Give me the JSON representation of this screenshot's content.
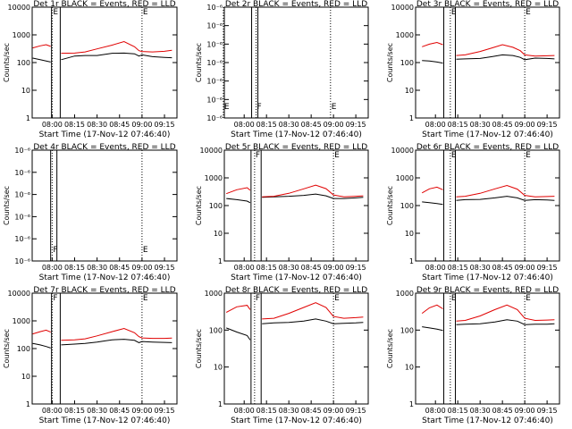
{
  "chart_data": {
    "type": "line",
    "x_ticks": [
      "08:00",
      "08:15",
      "08:30",
      "08:45",
      "09:00",
      "09:15"
    ],
    "x_range": [
      "07:46:40",
      "09:23:20"
    ],
    "x_label": "Start Time (17-Nov-12 07:46:40)",
    "y_label": "Counts/sec",
    "colors": {
      "events": "#000000",
      "lld": "#e00000"
    },
    "panels": [
      {
        "title": "Det 1r BLACK = Events, RED = LLD",
        "y_scale": "log",
        "y_range": [
          1,
          12000
        ],
        "y_tick_labels": [
          "1",
          "10",
          "100",
          "1000",
          "10000"
        ],
        "markers": [
          {
            "t": "08:00",
            "label": "E"
          },
          {
            "t": "09:00",
            "label": "E"
          }
        ],
        "x_label": "Start Time (17-Nov-12 07:46:40)",
        "series": [
          {
            "t": [
              "07:47",
              "07:52",
              "07:56",
              "07:59"
            ],
            "events": [
              160,
              140,
              125,
              115
            ],
            "lld": [
              380,
              450,
              500,
              430
            ]
          },
          {
            "t": [
              "08:06",
              "08:15",
              "08:22",
              "08:30",
              "08:40",
              "08:48",
              "08:55",
              "08:58",
              "09:00",
              "09:07",
              "09:15",
              "09:20"
            ],
            "events": [
              140,
              190,
              200,
              200,
              240,
              245,
              230,
              190,
              210,
              180,
              170,
              165
            ],
            "lld": [
              240,
              245,
              270,
              350,
              480,
              650,
              420,
              300,
              280,
              270,
              285,
              310
            ]
          }
        ]
      },
      {
        "title": "Det 2r BLACK = Events, RED = LLD",
        "y_scale": "log",
        "y_range": [
          1e-06,
          8e-06
        ],
        "y_tick_labels": [
          "10⁻⁶",
          "10⁻⁶",
          "10⁻⁶",
          "10⁻⁶",
          "10⁻⁶",
          "10⁻⁶",
          "10⁻⁶"
        ],
        "markers": [
          {
            "t": "07:46",
            "label": "E"
          },
          {
            "t": "08:08",
            "label": "F"
          },
          {
            "t": "08:58",
            "label": "E"
          }
        ],
        "x_label": "Start Time (17-Nov-12 07:46:40)",
        "series": []
      },
      {
        "title": "Det 3r BLACK = Events, RED = LLD",
        "y_scale": "log",
        "y_range": [
          1,
          12000
        ],
        "y_tick_labels": [
          "1",
          "10",
          "100",
          "1000",
          "10000"
        ],
        "markers": [
          {
            "t": "08:10",
            "label": "E"
          },
          {
            "t": "09:00",
            "label": "E"
          }
        ],
        "x_label": "Start Time (17-Nov-12 07:46:40)",
        "series": [
          {
            "t": [
              "07:51",
              "07:56",
              "08:01",
              "08:05"
            ],
            "events": [
              130,
              125,
              115,
              105
            ],
            "lld": [
              420,
              520,
              600,
              500
            ]
          },
          {
            "t": [
              "08:14",
              "08:20",
              "08:30",
              "08:38",
              "08:45",
              "08:52",
              "08:57",
              "09:00",
              "09:07",
              "09:15",
              "09:20"
            ],
            "events": [
              145,
              150,
              155,
              180,
              210,
              200,
              170,
              140,
              160,
              155,
              150
            ],
            "lld": [
              200,
              210,
              280,
              380,
              500,
              400,
              300,
              210,
              190,
              195,
              200
            ]
          }
        ]
      },
      {
        "title": "Det 4r BLACK = Events, RED = LLD",
        "y_scale": "log",
        "y_range": [
          1e-06,
          1.2e-05
        ],
        "y_tick_labels": [
          "10⁻⁶",
          "10⁻⁶",
          "10⁻⁶",
          "10⁻⁶",
          "10⁻⁶",
          "10⁻⁶"
        ],
        "markers": [
          {
            "t": "08:00",
            "label": "F"
          },
          {
            "t": "09:00",
            "label": "E"
          }
        ],
        "x_label": "Start Time (17-Nov-12 07:46:40)",
        "series": []
      },
      {
        "title": "Det 5r BLACK = Events, RED = LLD",
        "y_scale": "log",
        "y_range": [
          1,
          12000
        ],
        "y_tick_labels": [
          "1",
          "10",
          "100",
          "1000",
          "10000"
        ],
        "markers": [
          {
            "t": "08:07",
            "label": "F"
          },
          {
            "t": "09:00",
            "label": "E"
          }
        ],
        "x_label": "Start Time (17-Nov-12 07:46:40)",
        "series": [
          {
            "t": [
              "07:48",
              "07:55",
              "08:02",
              "08:04"
            ],
            "events": [
              200,
              180,
              160,
              140
            ],
            "lld": [
              300,
              420,
              500,
              400
            ]
          },
          {
            "t": [
              "08:12",
              "08:20",
              "08:30",
              "08:40",
              "08:48",
              "08:55",
              "09:00",
              "09:07",
              "09:15",
              "09:20"
            ],
            "events": [
              220,
              230,
              240,
              260,
              290,
              250,
              200,
              200,
              210,
              220
            ],
            "lld": [
              230,
              240,
              310,
              450,
              620,
              460,
              270,
              230,
              240,
              250
            ]
          }
        ]
      },
      {
        "title": "Det 6r BLACK = Events, RED = LLD",
        "y_scale": "log",
        "y_range": [
          1,
          12000
        ],
        "y_tick_labels": [
          "1",
          "10",
          "100",
          "1000",
          "10000"
        ],
        "markers": [
          {
            "t": "08:10",
            "label": "E"
          },
          {
            "t": "09:00",
            "label": "E"
          }
        ],
        "x_label": "Start Time (17-Nov-12 07:46:40)",
        "series": [
          {
            "t": [
              "07:51",
              "07:56",
              "08:01",
              "08:05"
            ],
            "events": [
              150,
              140,
              130,
              120
            ],
            "lld": [
              320,
              450,
              520,
              420
            ]
          },
          {
            "t": [
              "08:14",
              "08:20",
              "08:30",
              "08:40",
              "08:48",
              "08:55",
              "09:00",
              "09:07",
              "09:15",
              "09:20"
            ],
            "events": [
              170,
              180,
              185,
              210,
              240,
              210,
              170,
              180,
              175,
              170
            ],
            "lld": [
              230,
              240,
              310,
              450,
              600,
              440,
              260,
              230,
              235,
              240
            ]
          }
        ]
      },
      {
        "title": "Det 7r BLACK = Events, RED = LLD",
        "y_scale": "log",
        "y_range": [
          1,
          12000
        ],
        "y_tick_labels": [
          "1",
          "10",
          "100",
          "1000",
          "10000"
        ],
        "markers": [
          {
            "t": "08:00",
            "label": "F"
          },
          {
            "t": "09:00",
            "label": "E"
          }
        ],
        "x_label": "Start Time (17-Nov-12 07:46:40)",
        "series": [
          {
            "t": [
              "07:47",
              "07:52",
              "07:56",
              "07:59"
            ],
            "events": [
              170,
              150,
              130,
              115
            ],
            "lld": [
              380,
              460,
              520,
              440
            ]
          },
          {
            "t": [
              "08:06",
              "08:15",
              "08:22",
              "08:30",
              "08:40",
              "08:48",
              "08:55",
              "08:58",
              "09:00",
              "09:07",
              "09:15",
              "09:20"
            ],
            "events": [
              150,
              160,
              170,
              190,
              230,
              240,
              220,
              180,
              200,
              190,
              185,
              180
            ],
            "lld": [
              220,
              230,
              250,
              320,
              460,
              600,
              420,
              300,
              270,
              260,
              260,
              265
            ]
          }
        ]
      },
      {
        "title": "Det 8r BLACK = Events, RED = LLD",
        "y_scale": "log",
        "y_range": [
          1,
          1200
        ],
        "y_tick_labels": [
          "1",
          "10",
          "100",
          "1000"
        ],
        "markers": [
          {
            "t": "08:07",
            "label": "F"
          },
          {
            "t": "09:00",
            "label": "E"
          }
        ],
        "x_label": "Start Time (17-Nov-12 07:46:40)",
        "series": [
          {
            "t": [
              "07:48",
              "07:55",
              "08:02",
              "08:04"
            ],
            "events": [
              130,
              100,
              80,
              60
            ],
            "lld": [
              350,
              500,
              550,
              420
            ]
          },
          {
            "t": [
              "08:12",
              "08:20",
              "08:30",
              "08:40",
              "08:48",
              "08:55",
              "09:00",
              "09:07",
              "09:15",
              "09:20"
            ],
            "events": [
              170,
              180,
              185,
              200,
              230,
              200,
              170,
              175,
              180,
              185
            ],
            "lld": [
              230,
              240,
              330,
              480,
              650,
              480,
              270,
              240,
              250,
              260
            ]
          }
        ]
      },
      {
        "title": "Det 9r BLACK = Events, RED = LLD",
        "y_scale": "log",
        "y_range": [
          1,
          1200
        ],
        "y_tick_labels": [
          "1",
          "10",
          "100",
          "1000"
        ],
        "markers": [
          {
            "t": "08:10",
            "label": "E"
          },
          {
            "t": "09:00",
            "label": "E"
          }
        ],
        "x_label": "Start Time (17-Nov-12 07:46:40)",
        "series": [
          {
            "t": [
              "07:51",
              "07:56",
              "08:01",
              "08:05"
            ],
            "events": [
              140,
              130,
              120,
              110
            ],
            "lld": [
              330,
              470,
              560,
              440
            ]
          },
          {
            "t": [
              "08:14",
              "08:20",
              "08:30",
              "08:40",
              "08:48",
              "08:55",
              "09:00",
              "09:07",
              "09:15",
              "09:20"
            ],
            "events": [
              160,
              165,
              170,
              190,
              220,
              200,
              160,
              165,
              165,
              170
            ],
            "lld": [
              200,
              210,
              280,
              420,
              560,
              420,
              240,
              210,
              215,
              220
            ]
          }
        ]
      }
    ]
  }
}
